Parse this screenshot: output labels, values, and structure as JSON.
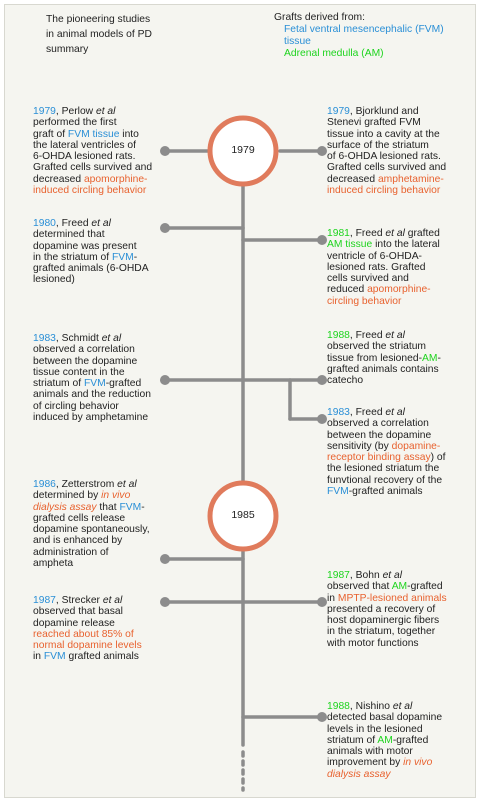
{
  "header": {
    "title_lines": [
      "The pioneering studies",
      "in animal models of PD",
      "summary"
    ],
    "legend_title": "Grafts derived from:",
    "legend_fvm": "Fetal ventral mesencephalic (FVM) tissue",
    "legend_am": "Adrenal medulla (AM)"
  },
  "colors": {
    "fvm": "#2a8fd6",
    "am": "#1ed41e",
    "highlight": "#e8622f",
    "line": "#8c8c8c",
    "circle": "#e07b5c"
  },
  "milestones": [
    {
      "id": "m1979",
      "label": "1979"
    },
    {
      "id": "m1985",
      "label": "1985"
    }
  ],
  "entries": {
    "e1": {
      "year": "1979",
      "author": ", Perlow ",
      "etal": "et al",
      "a": "\nperformed the first\ngraft of ",
      "hl1": "FVM tissue",
      "b": " into\nthe lateral ventricles of\n6-OHDA lesioned rats.\nGrafted cells survived and\ndecreased ",
      "hl2": "apomorphine-\ninduced circling behavior"
    },
    "e2": {
      "year": "1979",
      "a": ", Bjorklund and\nStenevi grafted FVM\ntissue into a cavity at the\nsurface of the striatum\nof 6-OHDA lesioned rats.\nGrafted cells survived and\ndecreased ",
      "hl1": "amphetamine-\ninduced circling behavior"
    },
    "e3": {
      "year": "1980",
      "author": ", Freed ",
      "etal": "et al",
      "a": "\ndetermined that\ndopamine was present\nin the striatum of ",
      "hl1": "FVM",
      "b": "-\ngrafted animals (6-OHDA\nlesioned)"
    },
    "e4": {
      "year": "1981",
      "author": ", Freed ",
      "etal": "et al",
      "a": " grafted\n",
      "hl1": "AM tissue",
      "b": " into the lateral\nventricle of 6-OHDA-\nlesioned rats. Grafted\ncells survived and\nreduced ",
      "hl2": "apomorphine-\ncircling behavior"
    },
    "e5": {
      "year": "1983",
      "author": ", Schmidt ",
      "etal": "et al",
      "a": "\nobserved a correlation\nbetween the dopamine\ntissue content in the\nstriatum of ",
      "hl1": "FVM",
      "b": "-grafted\nanimals and the reduction\nof circling behavior\ninduced by amphetamine"
    },
    "e6": {
      "year": "1988",
      "author": ", Freed ",
      "etal": "et al",
      "a": "\nobserved the striatum\ntissue from lesioned-",
      "hl1": "AM",
      "b": "-\ngrafted animals contains\ncatecho"
    },
    "e7": {
      "year": "1983",
      "author": ", Freed ",
      "etal": "et al",
      "a": "\nobserved a correlation\nbetween the dopamine\nsensitivity (by ",
      "hl1": "dopamine-\nreceptor binding assay",
      "b": ") of\nthe lesioned striatum the\nfunvtional recovery of the\n",
      "hl2": "FVM",
      "c": "-grafted animals"
    },
    "e8": {
      "year": "1986",
      "author": ", Zetterstrom ",
      "etal": "et al",
      "a": "\ndetermined by ",
      "hl1": "in vivo\ndialysis assay",
      "b": " that ",
      "hl2": "FVM",
      "c": "-\ngrafted cells release\ndopamine spontaneously,\nand is enhanced by\nadministration of\nampheta"
    },
    "e9": {
      "year": "1987",
      "author": ", Bohn ",
      "etal": "et al",
      "a": "\nobserved that ",
      "hl1": "AM",
      "b": "-grafted\nin ",
      "hl2": "MPTP-lesioned animals",
      "c": "\npresented a recovery of\nhost dopaminergic fibers\nin the striatum, together\nwith motor functions"
    },
    "e10": {
      "year": "1987",
      "author": ", Strecker ",
      "etal": "et al",
      "a": "\nobserved that basal\ndopamine release\n",
      "hl1": "reached about 85% of\nnormal dopamine levels",
      "b": "\nin ",
      "hl2": "FVM",
      "c": " grafted animals"
    },
    "e11": {
      "year": "1988",
      "author": ", Nishino ",
      "etal": "et al",
      "a": "\ndetected basal dopamine\nlevels in the lesioned\nstriatum of ",
      "hl1": "AM",
      "b": "-grafted\nanimals with motor\nimprovement by ",
      "hl2": "in vivo\ndialysis assay"
    }
  }
}
